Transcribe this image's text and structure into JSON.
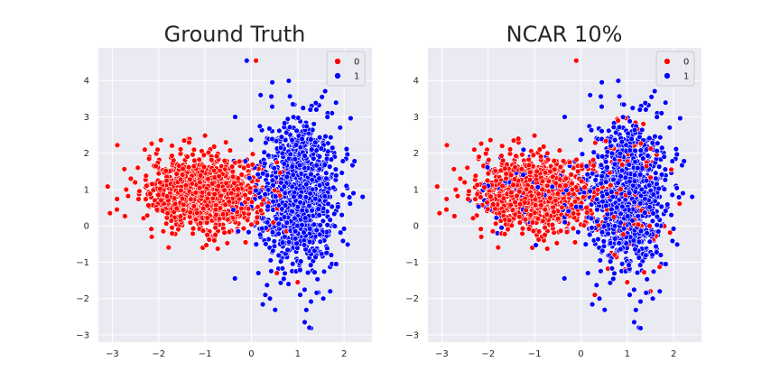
{
  "chart_data": [
    {
      "type": "scatter",
      "title": "Ground Truth",
      "xlabel": "",
      "ylabel": "",
      "xlim": [
        -3.3,
        2.6
      ],
      "ylim": [
        -3.2,
        4.9
      ],
      "xticks": [
        -3,
        -2,
        -1,
        0,
        1,
        2
      ],
      "yticks": [
        -3,
        -2,
        -1,
        0,
        1,
        2,
        3,
        4
      ],
      "grid": true,
      "legend": "upper-right",
      "series": [
        {
          "name": "0",
          "color": "#ff0000",
          "center": [
            -1.0,
            0.9
          ],
          "spread": [
            0.6,
            0.5
          ],
          "count": 1100,
          "points": [
            [
              -3.05,
              0.35
            ],
            [
              -2.9,
              0.45
            ],
            [
              -2.7,
              1.0
            ],
            [
              -2.6,
              1.3
            ],
            [
              -2.45,
              1.6
            ],
            [
              -2.3,
              2.1
            ],
            [
              -2.2,
              1.9
            ],
            [
              -2.15,
              -0.3
            ],
            [
              -1.9,
              -0.15
            ],
            [
              -1.7,
              2.2
            ],
            [
              -1.45,
              2.35
            ],
            [
              -1.35,
              2.4
            ],
            [
              -1.05,
              -0.6
            ],
            [
              -0.8,
              -0.4
            ],
            [
              -0.55,
              2.3
            ],
            [
              0.1,
              4.55
            ],
            [
              0.55,
              1.75
            ],
            [
              0.7,
              1.5
            ],
            [
              1.0,
              -1.55
            ],
            [
              1.2,
              1.8
            ],
            [
              1.35,
              1.6
            ],
            [
              0.6,
              1.2
            ],
            [
              0.55,
              -1.3
            ]
          ]
        },
        {
          "name": "1",
          "color": "#0000ff",
          "center": [
            1.0,
            0.85
          ],
          "spread": [
            0.42,
            1.0
          ],
          "count": 1100,
          "points": [
            [
              -0.1,
              4.55
            ],
            [
              0.2,
              3.6
            ],
            [
              0.45,
              3.95
            ],
            [
              -0.35,
              3.0
            ],
            [
              1.3,
              3.3
            ],
            [
              1.4,
              3.2
            ],
            [
              1.75,
              2.15
            ],
            [
              2.05,
              1.1
            ],
            [
              2.2,
              0.9
            ],
            [
              2.4,
              0.8
            ],
            [
              1.95,
              0.3
            ],
            [
              0.15,
              -1.3
            ],
            [
              0.3,
              -1.9
            ],
            [
              0.4,
              -2.0
            ],
            [
              1.15,
              -2.65
            ],
            [
              1.25,
              -2.8
            ],
            [
              1.55,
              -2.0
            ],
            [
              1.7,
              -1.8
            ],
            [
              0.8,
              -1.6
            ],
            [
              0.2,
              -0.3
            ],
            [
              -0.2,
              0.6
            ]
          ]
        }
      ]
    },
    {
      "type": "scatter",
      "title": "NCAR 10%",
      "xlabel": "",
      "ylabel": "",
      "xlim": [
        -3.3,
        2.6
      ],
      "ylim": [
        -3.2,
        4.9
      ],
      "xticks": [
        -3,
        -2,
        -1,
        0,
        1,
        2
      ],
      "yticks": [
        -3,
        -2,
        -1,
        0,
        1,
        2,
        3,
        4
      ],
      "grid": true,
      "legend": "upper-right",
      "noise_fraction": 0.1,
      "series": [
        {
          "name": "0",
          "color": "#ff0000",
          "center": [
            -1.0,
            0.9
          ],
          "spread": [
            0.6,
            0.5
          ],
          "count": 1100,
          "points": [
            [
              -3.05,
              0.35
            ],
            [
              -2.9,
              0.45
            ],
            [
              -2.7,
              1.0
            ],
            [
              -2.6,
              1.3
            ],
            [
              -2.45,
              1.6
            ],
            [
              -2.3,
              2.1
            ],
            [
              -2.2,
              1.9
            ],
            [
              -2.15,
              -0.3
            ],
            [
              -1.9,
              -0.15
            ],
            [
              -1.7,
              2.2
            ],
            [
              -1.45,
              2.35
            ],
            [
              -1.35,
              2.4
            ],
            [
              -1.05,
              -0.6
            ],
            [
              -0.8,
              -0.4
            ],
            [
              -0.1,
              4.55
            ],
            [
              0.3,
              -1.9
            ],
            [
              0.55,
              1.75
            ],
            [
              1.0,
              -1.55
            ],
            [
              1.2,
              1.8
            ],
            [
              1.35,
              1.6
            ],
            [
              1.5,
              -1.8
            ],
            [
              1.95,
              1.55
            ],
            [
              0.95,
              -1.2
            ],
            [
              1.6,
              0.6
            ],
            [
              0.8,
              2.9
            ]
          ]
        },
        {
          "name": "1",
          "color": "#0000ff",
          "center": [
            1.0,
            0.85
          ],
          "spread": [
            0.42,
            1.0
          ],
          "count": 1100,
          "points": [
            [
              0.2,
              3.6
            ],
            [
              0.45,
              3.95
            ],
            [
              -0.35,
              3.0
            ],
            [
              1.3,
              3.3
            ],
            [
              1.4,
              3.2
            ],
            [
              1.75,
              2.15
            ],
            [
              2.05,
              1.1
            ],
            [
              2.2,
              0.9
            ],
            [
              2.4,
              0.8
            ],
            [
              1.95,
              0.3
            ],
            [
              0.15,
              -1.3
            ],
            [
              0.4,
              -2.0
            ],
            [
              1.15,
              -2.65
            ],
            [
              1.25,
              -2.8
            ],
            [
              1.55,
              -2.0
            ],
            [
              1.7,
              -1.8
            ],
            [
              -0.9,
              0.3
            ],
            [
              -1.4,
              0.8
            ],
            [
              -2.0,
              1.1
            ],
            [
              -1.8,
              -0.2
            ],
            [
              -0.55,
              1.6
            ],
            [
              -1.1,
              1.9
            ],
            [
              -2.4,
              0.7
            ],
            [
              -0.2,
              0.6
            ]
          ]
        }
      ]
    }
  ]
}
